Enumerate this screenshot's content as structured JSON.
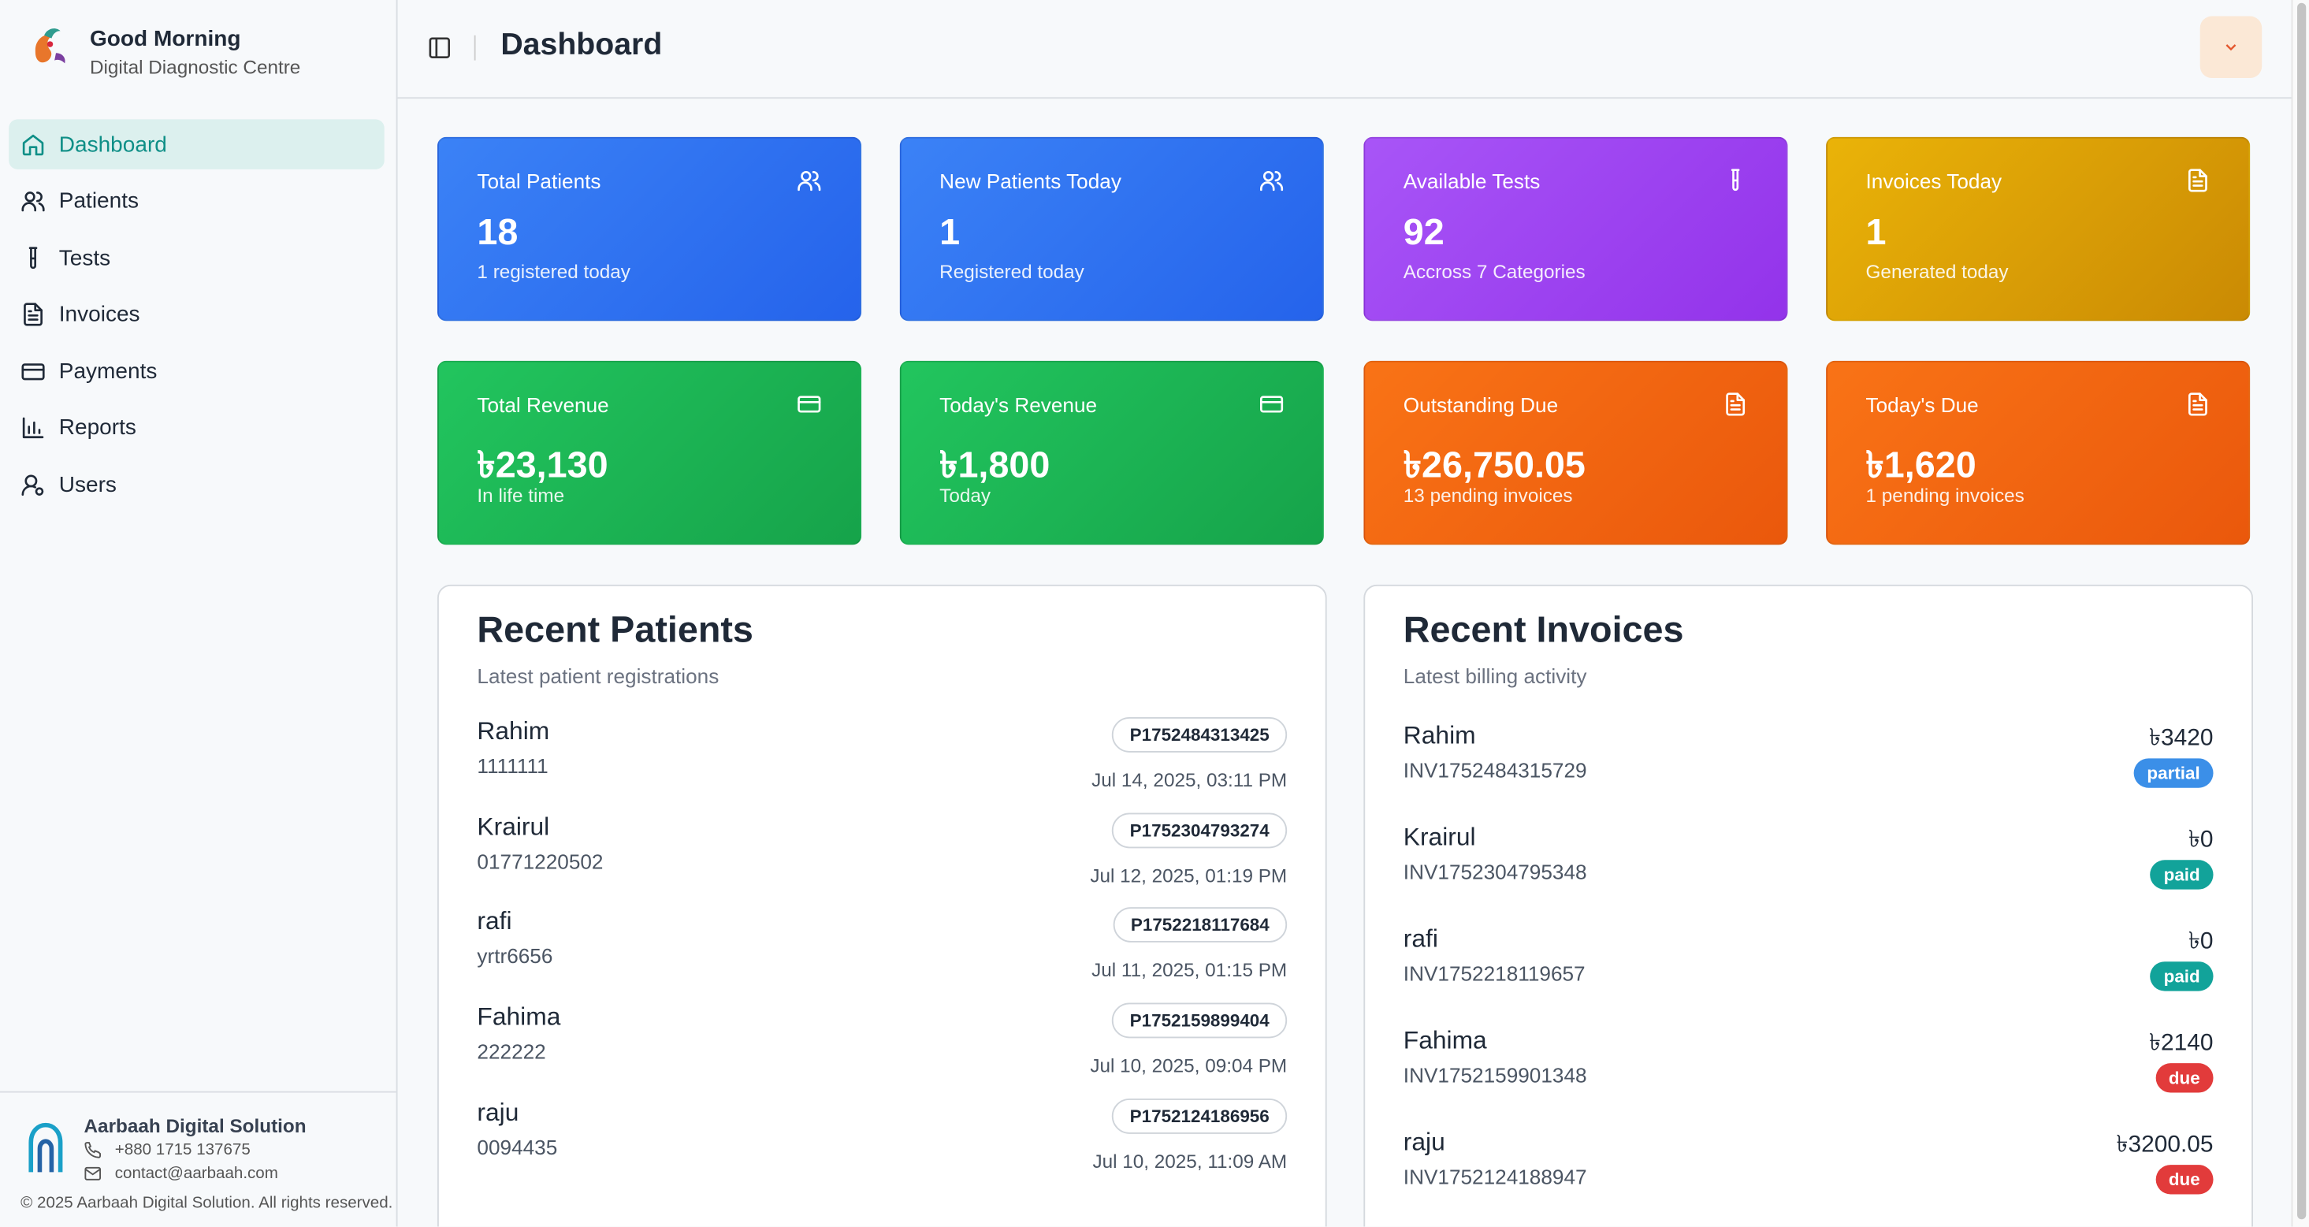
{
  "sidebar": {
    "brand": {
      "title": "Good Morning",
      "subtitle": "Digital Diagnostic Centre"
    },
    "nav": [
      "Dashboard",
      "Patients",
      "Tests",
      "Invoices",
      "Payments",
      "Reports",
      "Users"
    ],
    "footer": {
      "company": "Aarbaah Digital Solution",
      "phone": "+880 1715 137675",
      "email": "contact@aarbaah.com",
      "copyright": "© 2025 Aarbaah Digital Solution. All rights reserved."
    }
  },
  "header": {
    "title": "Dashboard"
  },
  "stats": [
    {
      "label": "Total Patients",
      "value": "18",
      "note": "1 registered today"
    },
    {
      "label": "New Patients Today",
      "value": "1",
      "note": "Registered today"
    },
    {
      "label": "Available Tests",
      "value": "92",
      "note": "Accross 7 Categories"
    },
    {
      "label": "Invoices Today",
      "value": "1",
      "note": "Generated today"
    },
    {
      "label": "Total Revenue",
      "value": "৳23,130",
      "note": "In life time"
    },
    {
      "label": "Today's Revenue",
      "value": "৳1,800",
      "note": "Today"
    },
    {
      "label": "Outstanding Due",
      "value": "৳26,750.05",
      "note": "13 pending invoices"
    },
    {
      "label": "Today's Due",
      "value": "৳1,620",
      "note": "1 pending invoices"
    }
  ],
  "recent_patients": {
    "title": "Recent Patients",
    "subtitle": "Latest patient registrations",
    "rows": [
      {
        "name": "Rahim",
        "phone": "1111111",
        "id": "P1752484313425",
        "date": "Jul 14, 2025, 03:11 PM"
      },
      {
        "name": "Krairul",
        "phone": "01771220502",
        "id": "P1752304793274",
        "date": "Jul 12, 2025, 01:19 PM"
      },
      {
        "name": "rafi",
        "phone": "yrtr6656",
        "id": "P1752218117684",
        "date": "Jul 11, 2025, 01:15 PM"
      },
      {
        "name": "Fahima",
        "phone": "222222",
        "id": "P1752159899404",
        "date": "Jul 10, 2025, 09:04 PM"
      },
      {
        "name": "raju",
        "phone": "0094435",
        "id": "P1752124186956",
        "date": "Jul 10, 2025, 11:09 AM"
      }
    ]
  },
  "recent_invoices": {
    "title": "Recent Invoices",
    "subtitle": "Latest billing activity",
    "rows": [
      {
        "name": "Rahim",
        "invoice": "INV1752484315729",
        "amount": "৳3420",
        "status": "partial",
        "status_color": "#3b8fe8"
      },
      {
        "name": "Krairul",
        "invoice": "INV1752304795348",
        "amount": "৳0",
        "status": "paid",
        "status_color": "#12a39a"
      },
      {
        "name": "rafi",
        "invoice": "INV1752218119657",
        "amount": "৳0",
        "status": "paid",
        "status_color": "#12a39a"
      },
      {
        "name": "Fahima",
        "invoice": "INV1752159901348",
        "amount": "৳2140",
        "status": "due",
        "status_color": "#e23b3b"
      },
      {
        "name": "raju",
        "invoice": "INV1752124188947",
        "amount": "৳3200.05",
        "status": "due",
        "status_color": "#e23b3b"
      }
    ]
  }
}
